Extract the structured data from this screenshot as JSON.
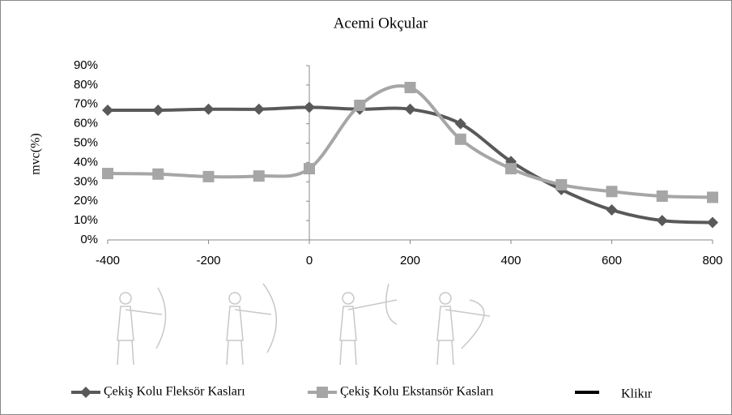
{
  "chart_data": {
    "type": "line",
    "title": "Acemi Okçular",
    "y_label": "mvc(%)",
    "x": [
      -400,
      -300,
      -200,
      -100,
      0,
      100,
      200,
      300,
      400,
      500,
      600,
      700,
      800
    ],
    "xlim": [
      -400,
      800
    ],
    "xticks": [
      -400,
      -200,
      0,
      200,
      400,
      600,
      800
    ],
    "ylim": [
      0,
      90
    ],
    "yticks": [
      {
        "value": 0,
        "label": "0%"
      },
      {
        "value": 10,
        "label": "10%"
      },
      {
        "value": 20,
        "label": "20%"
      },
      {
        "value": 30,
        "label": "30%"
      },
      {
        "value": 40,
        "label": "40%"
      },
      {
        "value": 50,
        "label": "50%"
      },
      {
        "value": 60,
        "label": "60%"
      },
      {
        "value": 70,
        "label": "70%"
      },
      {
        "value": 80,
        "label": "80%"
      },
      {
        "value": 90,
        "label": "90%"
      }
    ],
    "smooth": true,
    "series": [
      {
        "name": "Çekiş Kolu Fleksör Kasları",
        "color": "#595959",
        "marker": "diamond",
        "values": [
          67,
          67,
          67.5,
          67.5,
          68.5,
          67.5,
          67.5,
          60,
          40.5,
          26,
          15.5,
          10,
          9
        ]
      },
      {
        "name": "Çekiş Kolu Ekstansör Kasları",
        "color": "#a6a6a6",
        "marker": "square",
        "values": [
          34.3,
          34,
          32.7,
          33,
          36.8,
          69.5,
          78.7,
          52,
          36.8,
          28.5,
          25,
          22.6,
          22
        ]
      }
    ],
    "legend_extra": {
      "name": "Klikır",
      "color": "#000000"
    }
  }
}
